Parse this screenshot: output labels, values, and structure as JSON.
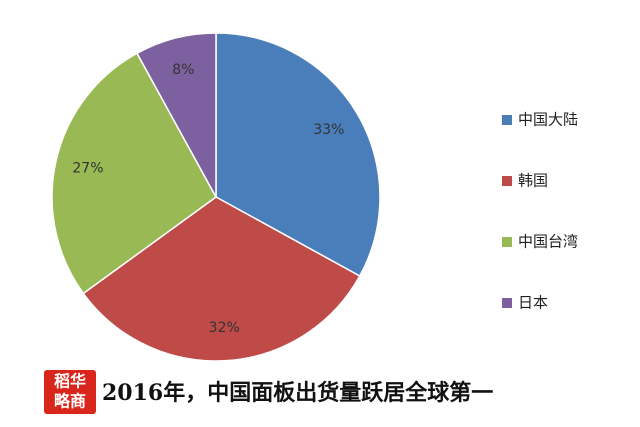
{
  "chart_data": {
    "type": "pie",
    "title": "2016年，中国面板出货量跃居全球第一",
    "categories": [
      "中国大陆",
      "韩国",
      "中国台湾",
      "日本"
    ],
    "values": [
      33,
      32,
      27,
      8
    ],
    "value_labels": [
      "33%",
      "32%",
      "27%",
      "8%"
    ],
    "colors": [
      "#4a7ebb",
      "#be4b48",
      "#98b954",
      "#7d60a0"
    ],
    "legend": "right"
  },
  "logo": {
    "lines": [
      "稻华",
      "略商"
    ]
  }
}
